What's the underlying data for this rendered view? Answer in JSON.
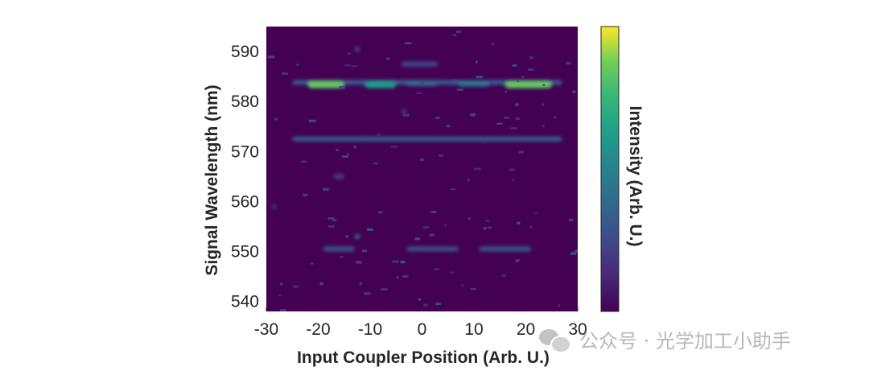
{
  "chart_data": {
    "type": "heatmap",
    "xlabel": "Input Coupler Position (Arb. U.)",
    "ylabel": "Signal Wavelength (nm)",
    "colorbar_label": "Intensity (Arb. U.)",
    "colormap": "viridis",
    "xlim": [
      -30,
      30
    ],
    "ylim": [
      538,
      595
    ],
    "xticks": [
      -30,
      -20,
      -10,
      0,
      10,
      20,
      30
    ],
    "yticks": [
      540,
      550,
      560,
      570,
      580,
      590
    ],
    "background_value": 0.02,
    "features": [
      {
        "x": [
          -25,
          27
        ],
        "y": 583.8,
        "intensity": 0.32
      },
      {
        "x": [
          -22,
          -15
        ],
        "y": 583.4,
        "intensity": 0.85
      },
      {
        "x": [
          -11,
          -5
        ],
        "y": 583.4,
        "intensity": 0.62
      },
      {
        "x": [
          -3,
          3
        ],
        "y": 583.6,
        "intensity": 0.42
      },
      {
        "x": [
          7,
          13
        ],
        "y": 583.5,
        "intensity": 0.48
      },
      {
        "x": [
          16,
          25
        ],
        "y": 583.4,
        "intensity": 0.85
      },
      {
        "x": [
          -25,
          27
        ],
        "y": 572.5,
        "intensity": 0.33
      },
      {
        "x": [
          -13,
          -12
        ],
        "y": 590.5,
        "intensity": 0.28
      },
      {
        "x": [
          -4,
          3
        ],
        "y": 587.5,
        "intensity": 0.25
      },
      {
        "x": [
          -13,
          -12
        ],
        "y": 553,
        "intensity": 0.45
      },
      {
        "x": [
          -19,
          -13
        ],
        "y": 550.5,
        "intensity": 0.3
      },
      {
        "x": [
          -3,
          7
        ],
        "y": 550.5,
        "intensity": 0.28
      },
      {
        "x": [
          11,
          21
        ],
        "y": 550.5,
        "intensity": 0.3
      },
      {
        "x": [
          -17,
          -15
        ],
        "y": 565,
        "intensity": 0.2
      },
      {
        "x": [
          -29,
          -28
        ],
        "y": 559,
        "intensity": 0.18
      },
      {
        "x": [
          -4,
          -3
        ],
        "y": 578,
        "intensity": 0.22
      }
    ]
  },
  "watermark": {
    "icon": "wechat-icon",
    "text": "公众号 · 光学加工小助手"
  }
}
